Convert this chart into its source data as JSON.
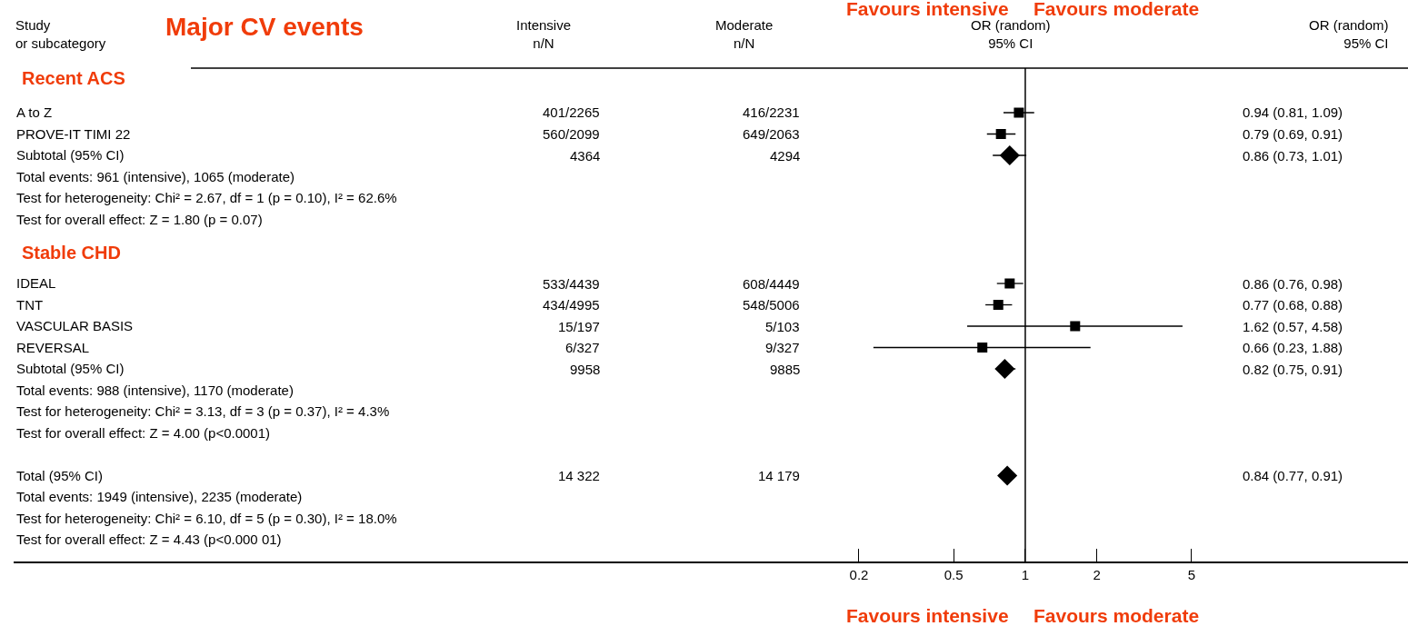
{
  "chart_data": {
    "type": "scatter",
    "title": "Major CV events",
    "orientation": "horizontal",
    "log": "x",
    "categories": [
      "A to Z",
      "PROVE-IT TIMI 22",
      "Subtotal (95% CI)",
      "Total events: 961 (intensive), 1065 (moderate)",
      "Test for heterogeneity: Chi² = 2.67, df = 1 (p = 0.10), I² = 62.6%",
      "Test for overall effect: Z = 1.80 (p = 0.07)",
      null,
      null,
      "IDEAL",
      "TNT",
      "VASCULAR BASIS",
      "REVERSAL",
      "Subtotal (95% CI)",
      "Total events: 988 (intensive), 1170 (moderate)",
      "Test for heterogeneity: Chi² = 3.13, df = 3 (p = 0.37), I² = 4.3%",
      "Test for overall effect: Z = 4.00 (p<0.0001)",
      null,
      "Total (95% CI)",
      "Total events: 1949 (intensive), 2235 (moderate)",
      "Test for heterogeneity: Chi² = 6.10, df = 5 (p = 0.30), I² = 18.0%",
      "Test for overall effect: Z = 4.43 (p<0.000 01)"
    ],
    "series": [
      {
        "marker": "square",
        "color": "#000000",
        "values": [
          0.94,
          0.79,
          null,
          null,
          null,
          null,
          null,
          null,
          0.86,
          0.77,
          1.62,
          0.66,
          null,
          null,
          null,
          null,
          null,
          null,
          null,
          null,
          null
        ],
        "errors": [
          [
            0.81,
            1.09
          ],
          [
            0.69,
            0.91
          ],
          null,
          null,
          null,
          null,
          null,
          null,
          [
            0.76,
            0.98
          ],
          [
            0.68,
            0.88
          ],
          [
            0.57,
            4.58
          ],
          [
            0.23,
            1.88
          ],
          null,
          null,
          null,
          null,
          null,
          null,
          null,
          null,
          null
        ]
      },
      {
        "marker": "diamond",
        "color": "#000000",
        "values": [
          null,
          null,
          0.86,
          null,
          null,
          null,
          null,
          null,
          null,
          null,
          null,
          null,
          0.82,
          null,
          null,
          null,
          null,
          0.84,
          null,
          null,
          null
        ],
        "errors": [
          null,
          null,
          [
            0.73,
            1.01
          ],
          null,
          null,
          null,
          null,
          null,
          null,
          null,
          null,
          null,
          [
            0.75,
            0.91
          ],
          null,
          null,
          null,
          null,
          [
            0.77,
            0.91
          ],
          null,
          null,
          null
        ]
      }
    ],
    "value_labels": [
      "0.94 (0.81, 1.09)",
      "0.79 (0.69, 0.91)",
      "0.86 (0.73, 1.01)",
      null,
      null,
      null,
      null,
      null,
      "0.86 (0.76, 0.98)",
      "0.77 (0.68, 0.88)",
      "1.62 (0.57, 4.58)",
      "0.66 (0.23, 1.88)",
      "0.82 (0.75, 0.91)",
      null,
      null,
      null,
      null,
      "0.84 (0.77, 0.91)",
      null,
      null,
      null
    ],
    "xlim": [
      5.6e-05,
      40.6
    ],
    "xticks": [
      0.2,
      0.5,
      1,
      2,
      5
    ],
    "ref_lines": [
      {
        "axis": "x",
        "value": 1,
        "color": "#000000"
      }
    ],
    "annotations": [
      "Study\nor subcategory",
      "Intensive\nn/N",
      "Moderate\nn/N",
      "OR (random)\n95% CI",
      "OR (random)\n95% CI",
      "Favours intensive",
      "Favours moderate",
      "Recent ACS",
      "Stable CHD",
      "401/2265",
      "416/2231",
      "560/2099",
      "649/2063",
      "4364",
      "4294",
      "533/4439",
      "608/4449",
      "434/4995",
      "548/5006",
      "15/197",
      "5/103",
      "6/327",
      "9/327",
      "9958",
      "9885",
      "14 322",
      "14 179",
      "Favours intensive",
      "Favours moderate"
    ]
  }
}
